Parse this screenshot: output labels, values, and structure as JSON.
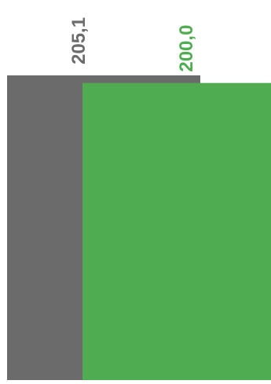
{
  "chart_data": {
    "type": "bar",
    "series": [
      {
        "value": 205.1,
        "label": "205,1",
        "color": "#6b6b6b"
      },
      {
        "value": 200.0,
        "label": "200,0",
        "color": "#4fac50"
      }
    ],
    "overlap": true,
    "axis_min": 0,
    "grid": false,
    "legend": "none"
  }
}
